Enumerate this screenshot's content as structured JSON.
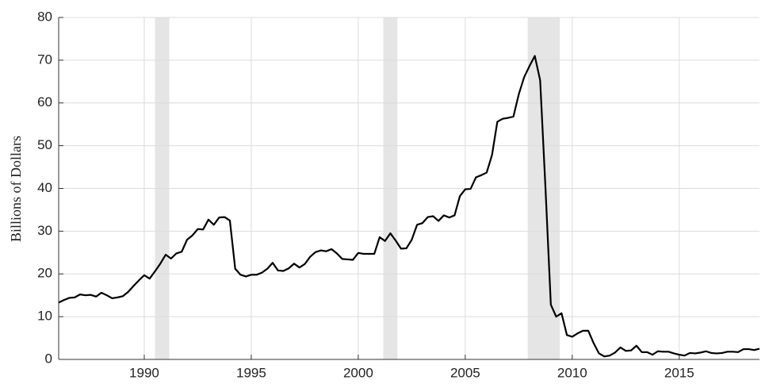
{
  "chart_data": {
    "type": "line",
    "y_label": "Billions of Dollars",
    "x": [
      1986,
      1986.25,
      1986.5,
      1986.75,
      1987,
      1987.25,
      1987.5,
      1987.75,
      1988,
      1988.25,
      1988.5,
      1988.75,
      1989,
      1989.25,
      1989.5,
      1989.75,
      1990,
      1990.25,
      1990.5,
      1990.75,
      1991,
      1991.25,
      1991.5,
      1991.75,
      1992,
      1992.25,
      1992.5,
      1992.75,
      1993,
      1993.25,
      1993.5,
      1993.75,
      1994,
      1994.25,
      1994.5,
      1994.75,
      1995,
      1995.25,
      1995.5,
      1995.75,
      1996,
      1996.25,
      1996.5,
      1996.75,
      1997,
      1997.25,
      1997.5,
      1997.75,
      1998,
      1998.25,
      1998.5,
      1998.75,
      1999,
      1999.25,
      1999.5,
      1999.75,
      2000,
      2000.25,
      2000.5,
      2000.75,
      2001,
      2001.25,
      2001.5,
      2001.75,
      2002,
      2002.25,
      2002.5,
      2002.75,
      2003,
      2003.25,
      2003.5,
      2003.75,
      2004,
      2004.25,
      2004.5,
      2004.75,
      2005,
      2005.25,
      2005.5,
      2005.75,
      2006,
      2006.25,
      2006.5,
      2006.75,
      2007,
      2007.25,
      2007.5,
      2007.75,
      2008,
      2008.25,
      2008.5,
      2008.75,
      2009,
      2009.25,
      2009.5,
      2009.75,
      2010,
      2010.25,
      2010.5,
      2010.75,
      2011,
      2011.25,
      2011.5,
      2011.75,
      2012,
      2012.25,
      2012.5,
      2012.75,
      2013,
      2013.25,
      2013.5,
      2013.75,
      2014,
      2014.25,
      2014.5,
      2014.75,
      2015,
      2015.25,
      2015.5,
      2015.75,
      2016,
      2016.25,
      2016.5,
      2016.75,
      2017,
      2017.25,
      2017.5,
      2017.75,
      2018,
      2018.25,
      2018.5,
      2018.75
    ],
    "series": [
      {
        "color": "#000000",
        "values": [
          13.3,
          13.9,
          14.4,
          14.5,
          15.2,
          15.0,
          15.1,
          14.7,
          15.6,
          15.0,
          14.3,
          14.5,
          14.8,
          15.8,
          17.2,
          18.5,
          19.7,
          18.9,
          20.6,
          22.4,
          24.5,
          23.6,
          24.8,
          25.2,
          28.0,
          29.0,
          30.5,
          30.4,
          32.7,
          31.5,
          33.2,
          33.3,
          32.5,
          21.2,
          19.8,
          19.4,
          19.8,
          19.8,
          20.3,
          21.2,
          22.6,
          20.8,
          20.7,
          21.3,
          22.4,
          21.5,
          22.3,
          24.0,
          25.1,
          25.5,
          25.3,
          25.8,
          24.8,
          23.5,
          23.4,
          23.3,
          24.9,
          24.7,
          24.7,
          24.7,
          28.6,
          27.7,
          29.5,
          27.8,
          25.9,
          26.0,
          28.0,
          31.5,
          31.9,
          33.3,
          33.5,
          32.4,
          33.7,
          33.2,
          33.7,
          38.2,
          39.8,
          39.9,
          42.6,
          43.1,
          43.7,
          47.8,
          55.6,
          56.3,
          56.5,
          56.8,
          62.0,
          66.0,
          68.6,
          71.0,
          65.3,
          40.0,
          12.8,
          10.0,
          10.8,
          5.7,
          5.3,
          6.1,
          6.7,
          6.7,
          3.8,
          1.4,
          0.7,
          0.9,
          1.6,
          2.8,
          2.0,
          2.1,
          3.2,
          1.7,
          1.7,
          1.1,
          1.9,
          1.8,
          1.8,
          1.4,
          1.1,
          0.9,
          1.5,
          1.4,
          1.6,
          1.9,
          1.5,
          1.4,
          1.5,
          1.8,
          1.8,
          1.7,
          2.4,
          2.4,
          2.2,
          2.5
        ]
      }
    ],
    "recessions": [
      [
        1990.5,
        1991.17
      ],
      [
        2001.17,
        2001.83
      ],
      [
        2007.92,
        2009.42
      ]
    ],
    "recession_color": "#e5e5e5",
    "xlim": [
      1986,
      2018.75
    ],
    "xticks": [
      1990,
      1995,
      2000,
      2005,
      2010,
      2015
    ],
    "ylim": [
      0,
      80
    ],
    "yticks": [
      0,
      10,
      20,
      30,
      40,
      50,
      60,
      70,
      80
    ],
    "grid": true
  }
}
